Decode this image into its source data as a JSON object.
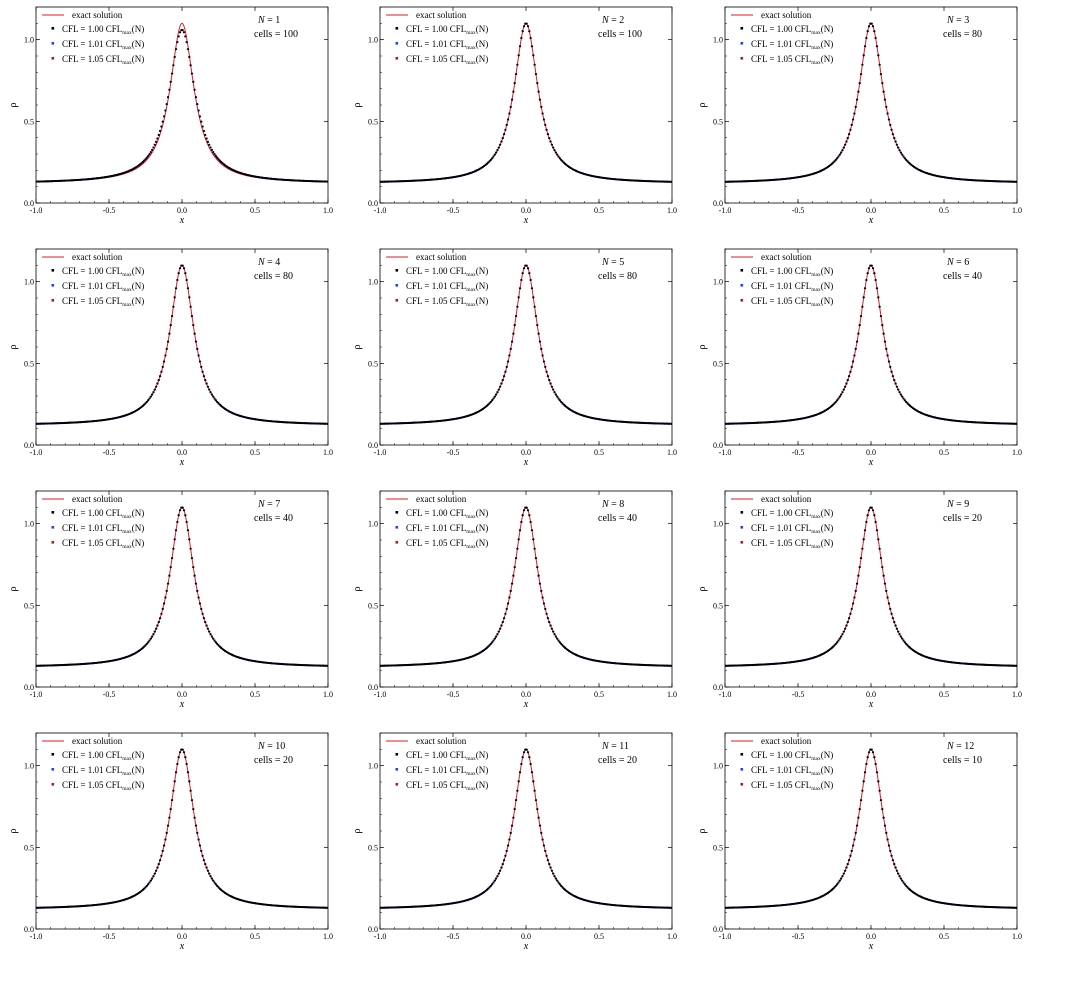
{
  "style": {
    "exact_color": "#e41a1c",
    "series_colors": [
      "#000000",
      "#1f3fff",
      "#b0182a"
    ],
    "frame_color": "#000000",
    "background": "#ffffff"
  },
  "legend": {
    "exact": "exact solution",
    "cfl_prefix": "CFL = ",
    "cfl_sub": "max",
    "cfl_suffix": "(N)",
    "cfl_mid": " CFL",
    "cfl_values": [
      "1.00",
      "1.01",
      "1.05"
    ]
  },
  "panel_text": {
    "n_prefix": "N = ",
    "cells_prefix": "cells = "
  },
  "chart_data": [
    {
      "type": "line",
      "N": "1",
      "cells": "100",
      "xlabel": "x",
      "ylabel": "ρ",
      "xlim": [
        -1,
        1
      ],
      "ylim": [
        0,
        1.2
      ],
      "xticks": [
        "-1.0",
        "-0.5",
        "0.0",
        "0.5",
        "1.0"
      ],
      "yticks": [
        "0.0",
        "0.5",
        "1.0"
      ],
      "peak": 1.1,
      "base": 0.12,
      "width": 0.1,
      "series": [
        {
          "name": "exact solution"
        },
        {
          "name": "CFL = 1.00 CFLmax(N)"
        },
        {
          "name": "CFL = 1.01 CFLmax(N)"
        },
        {
          "name": "CFL = 1.05 CFLmax(N)"
        }
      ],
      "numeric_peak": 1.06
    },
    {
      "type": "line",
      "N": "2",
      "cells": "100",
      "xlabel": "x",
      "ylabel": "ρ",
      "xlim": [
        -1,
        1
      ],
      "ylim": [
        0,
        1.2
      ],
      "xticks": [
        "-1.0",
        "-0.5",
        "0.0",
        "0.5",
        "1.0"
      ],
      "yticks": [
        "0.0",
        "0.5",
        "1.0"
      ],
      "peak": 1.1,
      "base": 0.12,
      "width": 0.1,
      "series": [
        {
          "name": "exact solution"
        },
        {
          "name": "CFL = 1.00 CFLmax(N)"
        },
        {
          "name": "CFL = 1.01 CFLmax(N)"
        },
        {
          "name": "CFL = 1.05 CFLmax(N)"
        }
      ],
      "numeric_peak": 1.1
    },
    {
      "type": "line",
      "N": "3",
      "cells": "80",
      "xlabel": "x",
      "ylabel": "ρ",
      "xlim": [
        -1,
        1
      ],
      "ylim": [
        0,
        1.2
      ],
      "xticks": [
        "-1.0",
        "-0.5",
        "0.0",
        "0.5",
        "1.0"
      ],
      "yticks": [
        "0.0",
        "0.5",
        "1.0"
      ],
      "peak": 1.1,
      "base": 0.12,
      "width": 0.1,
      "series": [
        {
          "name": "exact solution"
        },
        {
          "name": "CFL = 1.00 CFLmax(N)"
        },
        {
          "name": "CFL = 1.01 CFLmax(N)"
        },
        {
          "name": "CFL = 1.05 CFLmax(N)"
        }
      ],
      "numeric_peak": 1.1
    },
    {
      "type": "line",
      "N": "4",
      "cells": "80",
      "xlabel": "x",
      "ylabel": "ρ",
      "xlim": [
        -1,
        1
      ],
      "ylim": [
        0,
        1.2
      ],
      "xticks": [
        "-1.0",
        "-0.5",
        "0.0",
        "0.5",
        "1.0"
      ],
      "yticks": [
        "0.0",
        "0.5",
        "1.0"
      ],
      "peak": 1.1,
      "base": 0.12,
      "width": 0.1,
      "series": [
        {
          "name": "exact solution"
        },
        {
          "name": "CFL = 1.00 CFLmax(N)"
        },
        {
          "name": "CFL = 1.01 CFLmax(N)"
        },
        {
          "name": "CFL = 1.05 CFLmax(N)"
        }
      ],
      "numeric_peak": 1.1
    },
    {
      "type": "line",
      "N": "5",
      "cells": "80",
      "xlabel": "x",
      "ylabel": "ρ",
      "xlim": [
        -1,
        1
      ],
      "ylim": [
        0,
        1.2
      ],
      "xticks": [
        "-1.0",
        "-0.5",
        "0.0",
        "0.5",
        "1.0"
      ],
      "yticks": [
        "0.0",
        "0.5",
        "1.0"
      ],
      "peak": 1.1,
      "base": 0.12,
      "width": 0.1,
      "series": [
        {
          "name": "exact solution"
        },
        {
          "name": "CFL = 1.00 CFLmax(N)"
        },
        {
          "name": "CFL = 1.01 CFLmax(N)"
        },
        {
          "name": "CFL = 1.05 CFLmax(N)"
        }
      ],
      "numeric_peak": 1.1
    },
    {
      "type": "line",
      "N": "6",
      "cells": "40",
      "xlabel": "x",
      "ylabel": "ρ",
      "xlim": [
        -1,
        1
      ],
      "ylim": [
        0,
        1.2
      ],
      "xticks": [
        "-1.0",
        "-0.5",
        "0.0",
        "0.5",
        "1.0"
      ],
      "yticks": [
        "0.0",
        "0.5",
        "1.0"
      ],
      "peak": 1.1,
      "base": 0.12,
      "width": 0.1,
      "series": [
        {
          "name": "exact solution"
        },
        {
          "name": "CFL = 1.00 CFLmax(N)"
        },
        {
          "name": "CFL = 1.01 CFLmax(N)"
        },
        {
          "name": "CFL = 1.05 CFLmax(N)"
        }
      ],
      "numeric_peak": 1.1
    },
    {
      "type": "line",
      "N": "7",
      "cells": "40",
      "xlabel": "x",
      "ylabel": "ρ",
      "xlim": [
        -1,
        1
      ],
      "ylim": [
        0,
        1.2
      ],
      "xticks": [
        "-1.0",
        "-0.5",
        "0.0",
        "0.5",
        "1.0"
      ],
      "yticks": [
        "0.0",
        "0.5",
        "1.0"
      ],
      "peak": 1.1,
      "base": 0.12,
      "width": 0.1,
      "series": [
        {
          "name": "exact solution"
        },
        {
          "name": "CFL = 1.00 CFLmax(N)"
        },
        {
          "name": "CFL = 1.01 CFLmax(N)"
        },
        {
          "name": "CFL = 1.05 CFLmax(N)"
        }
      ],
      "numeric_peak": 1.1
    },
    {
      "type": "line",
      "N": "8",
      "cells": "40",
      "xlabel": "x",
      "ylabel": "ρ",
      "xlim": [
        -1,
        1
      ],
      "ylim": [
        0,
        1.2
      ],
      "xticks": [
        "-1.0",
        "-0.5",
        "0.0",
        "0.5",
        "1.0"
      ],
      "yticks": [
        "0.0",
        "0.5",
        "1.0"
      ],
      "peak": 1.1,
      "base": 0.12,
      "width": 0.1,
      "series": [
        {
          "name": "exact solution"
        },
        {
          "name": "CFL = 1.00 CFLmax(N)"
        },
        {
          "name": "CFL = 1.01 CFLmax(N)"
        },
        {
          "name": "CFL = 1.05 CFLmax(N)"
        }
      ],
      "numeric_peak": 1.1
    },
    {
      "type": "line",
      "N": "9",
      "cells": "20",
      "xlabel": "x",
      "ylabel": "ρ",
      "xlim": [
        -1,
        1
      ],
      "ylim": [
        0,
        1.2
      ],
      "xticks": [
        "-1.0",
        "-0.5",
        "0.0",
        "0.5",
        "1.0"
      ],
      "yticks": [
        "0.0",
        "0.5",
        "1.0"
      ],
      "peak": 1.1,
      "base": 0.12,
      "width": 0.1,
      "series": [
        {
          "name": "exact solution"
        },
        {
          "name": "CFL = 1.00 CFLmax(N)"
        },
        {
          "name": "CFL = 1.01 CFLmax(N)"
        },
        {
          "name": "CFL = 1.05 CFLmax(N)"
        }
      ],
      "numeric_peak": 1.1
    },
    {
      "type": "line",
      "N": "10",
      "cells": "20",
      "xlabel": "x",
      "ylabel": "ρ",
      "xlim": [
        -1,
        1
      ],
      "ylim": [
        0,
        1.2
      ],
      "xticks": [
        "-1.0",
        "-0.5",
        "0.0",
        "0.5",
        "1.0"
      ],
      "yticks": [
        "0.0",
        "0.5",
        "1.0"
      ],
      "peak": 1.1,
      "base": 0.12,
      "width": 0.1,
      "series": [
        {
          "name": "exact solution"
        },
        {
          "name": "CFL = 1.00 CFLmax(N)"
        },
        {
          "name": "CFL = 1.01 CFLmax(N)"
        },
        {
          "name": "CFL = 1.05 CFLmax(N)"
        }
      ],
      "numeric_peak": 1.1
    },
    {
      "type": "line",
      "N": "11",
      "cells": "20",
      "xlabel": "x",
      "ylabel": "ρ",
      "xlim": [
        -1,
        1
      ],
      "ylim": [
        0,
        1.2
      ],
      "xticks": [
        "-1.0",
        "-0.5",
        "0.0",
        "0.5",
        "1.0"
      ],
      "yticks": [
        "0.0",
        "0.5",
        "1.0"
      ],
      "peak": 1.1,
      "base": 0.12,
      "width": 0.1,
      "series": [
        {
          "name": "exact solution"
        },
        {
          "name": "CFL = 1.00 CFLmax(N)"
        },
        {
          "name": "CFL = 1.01 CFLmax(N)"
        },
        {
          "name": "CFL = 1.05 CFLmax(N)"
        }
      ],
      "numeric_peak": 1.1
    },
    {
      "type": "line",
      "N": "12",
      "cells": "10",
      "xlabel": "x",
      "ylabel": "ρ",
      "xlim": [
        -1,
        1
      ],
      "ylim": [
        0,
        1.2
      ],
      "xticks": [
        "-1.0",
        "-0.5",
        "0.0",
        "0.5",
        "1.0"
      ],
      "yticks": [
        "0.0",
        "0.5",
        "1.0"
      ],
      "peak": 1.1,
      "base": 0.12,
      "width": 0.1,
      "series": [
        {
          "name": "exact solution"
        },
        {
          "name": "CFL = 1.00 CFLmax(N)"
        },
        {
          "name": "CFL = 1.01 CFLmax(N)"
        },
        {
          "name": "CFL = 1.05 CFLmax(N)"
        }
      ],
      "numeric_peak": 1.1
    }
  ]
}
